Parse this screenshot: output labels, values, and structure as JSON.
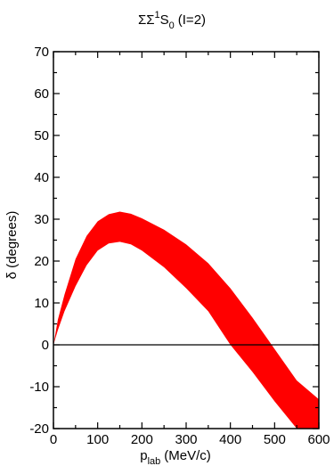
{
  "chart_data": {
    "type": "area",
    "title": {
      "main": "ΣΣ",
      "superscript": "1",
      "state": "S",
      "subscript": "0",
      "suffix": "(I=2)"
    },
    "xlabel": {
      "main": "p",
      "subscript": "lab",
      "suffix": "(MeV/c)"
    },
    "ylabel": "δ  (degrees)",
    "xlim": [
      0,
      600
    ],
    "ylim": [
      -20,
      70
    ],
    "xticks": [
      0,
      100,
      200,
      300,
      400,
      500,
      600
    ],
    "yticks": [
      -20,
      -10,
      0,
      10,
      20,
      30,
      40,
      50,
      60,
      70
    ],
    "x_tick_labels": [
      "0",
      "100",
      "200",
      "300",
      "400",
      "500",
      "600"
    ],
    "y_tick_labels": [
      "-20",
      "-10",
      "0",
      "10",
      "20",
      "30",
      "40",
      "50",
      "60",
      "70"
    ],
    "grid": false,
    "reference_line_y": 0,
    "band_color": "#ff0000",
    "series": [
      {
        "upper": {
          "x": [
            0,
            10,
            25,
            50,
            75,
            100,
            125,
            150,
            175,
            200,
            250,
            300,
            350,
            400,
            450,
            500,
            550,
            600
          ],
          "y": [
            0,
            6,
            12,
            20.5,
            26,
            29.5,
            31.2,
            31.8,
            31.3,
            30.2,
            27.5,
            24,
            19.5,
            13.5,
            6.5,
            -1,
            -8.5,
            -13
          ]
        },
        "lower": {
          "x": [
            0,
            10,
            25,
            50,
            75,
            100,
            125,
            150,
            175,
            200,
            250,
            300,
            350,
            400,
            450,
            500,
            550,
            600
          ],
          "y": [
            0,
            3.5,
            8,
            14,
            19,
            22.5,
            24.2,
            24.6,
            24,
            22.5,
            18.5,
            13.5,
            8,
            0,
            -6.5,
            -13.5,
            -20,
            -20
          ]
        }
      }
    ]
  }
}
